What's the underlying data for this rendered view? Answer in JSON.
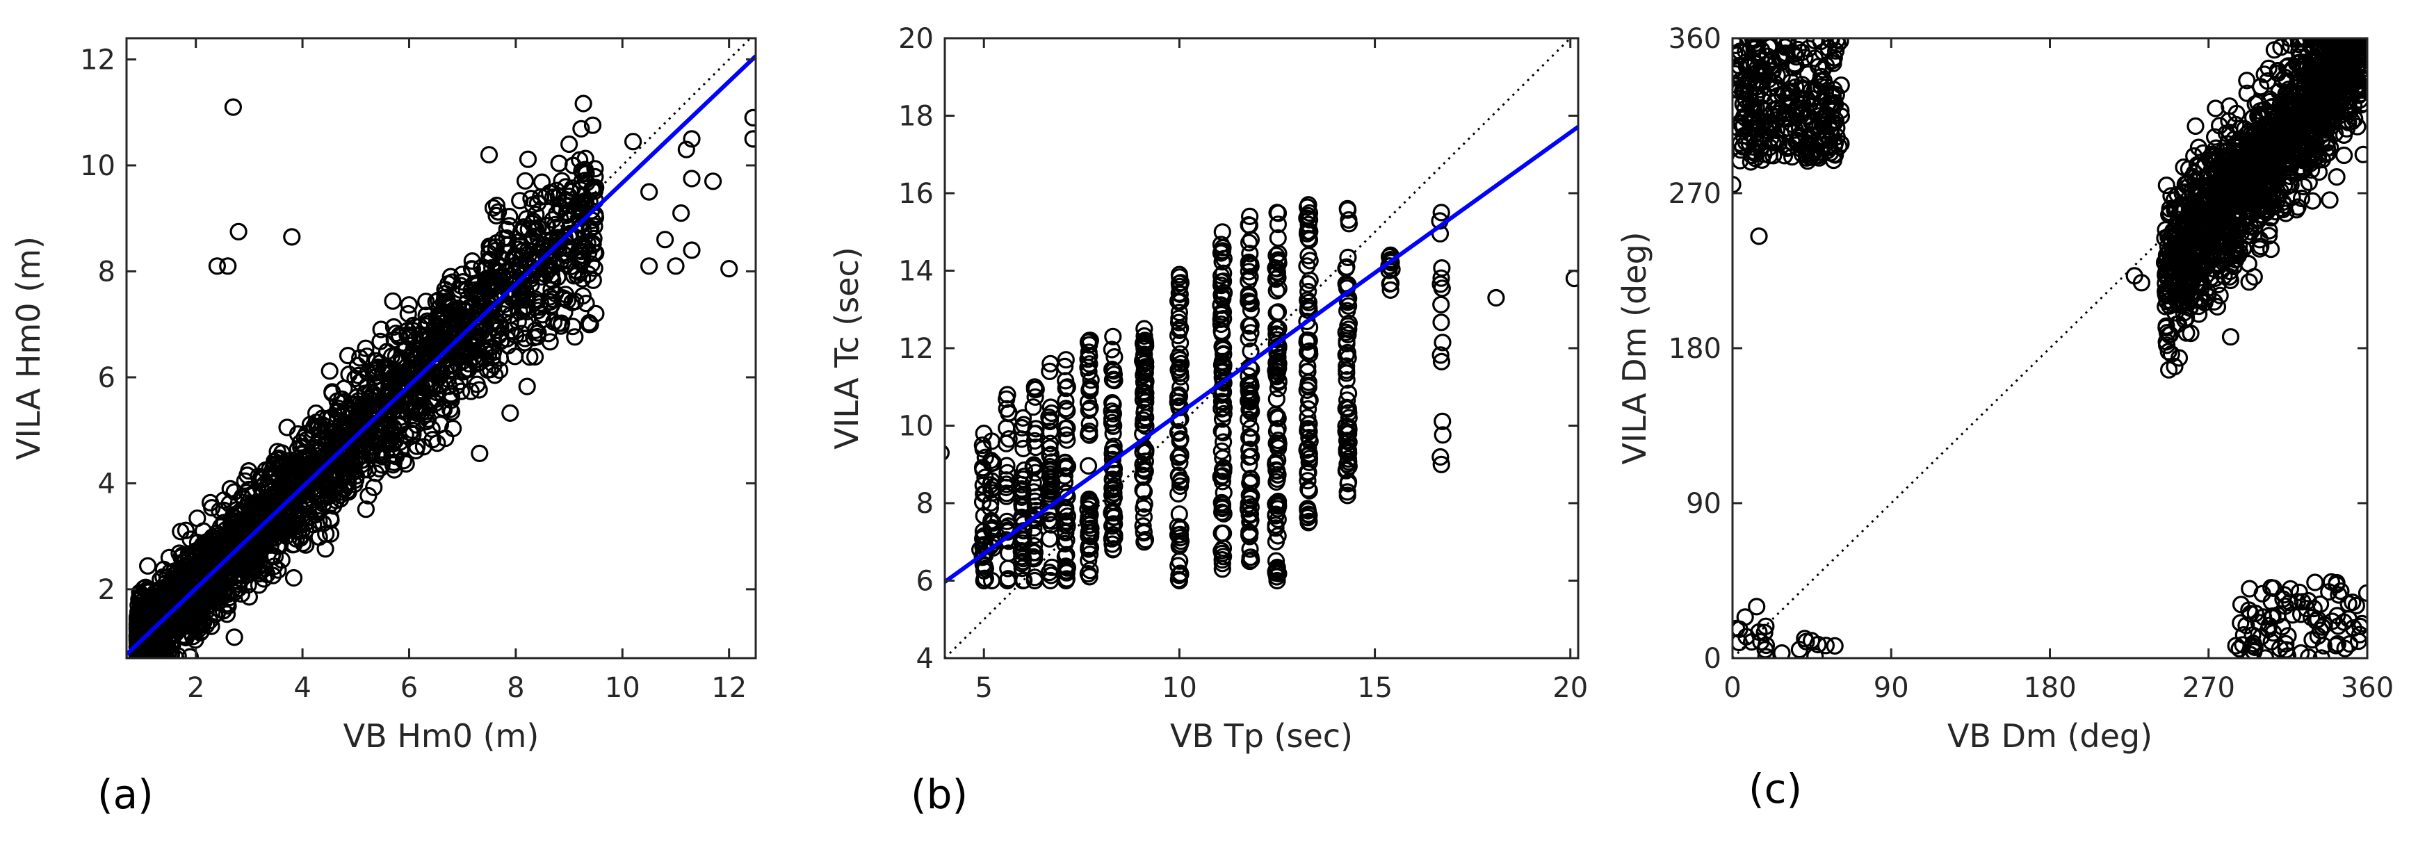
{
  "chart_data": [
    {
      "type": "scatter",
      "panel_label": "(a)",
      "xlabel": "VB Hm0 (m)",
      "ylabel": "VILA Hm0 (m)",
      "xlim": [
        0.7,
        12.5
      ],
      "ylim": [
        0.7,
        12.4
      ],
      "xticks": [
        2,
        4,
        6,
        8,
        10,
        12
      ],
      "yticks": [
        2,
        4,
        6,
        8,
        10,
        12
      ],
      "marker": "open-circle",
      "identity_line": true,
      "fit_line": {
        "color": "#0000ff",
        "slope": 0.957,
        "intercept": 0.1
      },
      "outliers": [
        [
          2.7,
          11.1
        ],
        [
          2.8,
          8.75
        ],
        [
          3.8,
          8.65
        ],
        [
          2.4,
          8.1
        ],
        [
          2.6,
          8.1
        ],
        [
          7.5,
          10.2
        ],
        [
          9.0,
          10.4
        ],
        [
          10.2,
          10.45
        ],
        [
          11.3,
          10.5
        ],
        [
          11.2,
          10.3
        ],
        [
          12.45,
          10.9
        ],
        [
          12.45,
          10.5
        ],
        [
          11.7,
          9.7
        ],
        [
          11.3,
          9.75
        ],
        [
          12.0,
          8.05
        ],
        [
          11.0,
          8.1
        ],
        [
          11.3,
          8.4
        ],
        [
          10.8,
          8.6
        ],
        [
          11.1,
          9.1
        ],
        [
          10.5,
          9.5
        ],
        [
          9.5,
          7.2
        ],
        [
          9.4,
          7.0
        ],
        [
          8.7,
          9.4
        ],
        [
          10.5,
          8.1
        ]
      ],
      "cloud": {
        "x_range": [
          0.9,
          9.5
        ],
        "mean_slope": 0.96,
        "mean_intercept": 0.1,
        "spread_y": 0.55,
        "count": 2600
      }
    },
    {
      "type": "scatter",
      "panel_label": "(b)",
      "xlabel": "VB Tp (sec)",
      "ylabel": "VILA Tc (sec)",
      "xlim": [
        4,
        20.2
      ],
      "ylim": [
        4,
        20
      ],
      "xticks": [
        5,
        10,
        15,
        20
      ],
      "yticks": [
        4,
        6,
        8,
        10,
        12,
        14,
        16,
        18,
        20
      ],
      "marker": "open-circle",
      "identity_line": true,
      "fit_line": {
        "color": "#0000ff",
        "slope": 0.725,
        "intercept": 3.07
      },
      "columns": [
        {
          "x": 5.0,
          "ymin": 6.0,
          "ymax": 9.8,
          "n": 28
        },
        {
          "x": 5.2,
          "ymin": 6.0,
          "ymax": 9.6,
          "n": 20
        },
        {
          "x": 5.6,
          "ymin": 6.0,
          "ymax": 10.8,
          "n": 24
        },
        {
          "x": 6.0,
          "ymin": 6.0,
          "ymax": 10.2,
          "n": 32
        },
        {
          "x": 6.3,
          "ymin": 6.0,
          "ymax": 11.0,
          "n": 34
        },
        {
          "x": 6.7,
          "ymin": 6.0,
          "ymax": 11.6,
          "n": 40
        },
        {
          "x": 7.1,
          "ymin": 6.0,
          "ymax": 11.7,
          "n": 44
        },
        {
          "x": 7.7,
          "ymin": 6.1,
          "ymax": 12.2,
          "n": 50
        },
        {
          "x": 8.3,
          "ymin": 6.8,
          "ymax": 12.3,
          "n": 52
        },
        {
          "x": 9.1,
          "ymin": 7.0,
          "ymax": 12.5,
          "n": 60
        },
        {
          "x": 10.0,
          "ymin": 6.0,
          "ymax": 13.9,
          "n": 70
        },
        {
          "x": 11.1,
          "ymin": 6.3,
          "ymax": 15.0,
          "n": 80
        },
        {
          "x": 11.8,
          "ymin": 6.5,
          "ymax": 15.4,
          "n": 80
        },
        {
          "x": 12.5,
          "ymin": 6.0,
          "ymax": 15.5,
          "n": 90
        },
        {
          "x": 13.3,
          "ymin": 7.5,
          "ymax": 15.7,
          "n": 70
        },
        {
          "x": 14.3,
          "ymin": 8.2,
          "ymax": 15.6,
          "n": 60
        },
        {
          "x": 15.4,
          "ymin": 13.5,
          "ymax": 14.4,
          "n": 10
        },
        {
          "x": 16.7,
          "ymin": 9.0,
          "ymax": 15.5,
          "n": 14
        }
      ],
      "outliers": [
        [
          3.9,
          9.3
        ],
        [
          18.1,
          13.3
        ],
        [
          20.1,
          13.8
        ],
        [
          4.9,
          6.8
        ],
        [
          5.2,
          7.3
        ]
      ]
    },
    {
      "type": "scatter",
      "panel_label": "(c)",
      "xlabel": "VB Dm (deg)",
      "ylabel": "VILA Dm (deg)",
      "xlim": [
        0,
        360
      ],
      "ylim": [
        0,
        360
      ],
      "xticks": [
        0,
        90,
        180,
        270,
        360
      ],
      "yticks": [
        0,
        90,
        180,
        270,
        360
      ],
      "marker": "open-circle",
      "identity_line": true,
      "clusters": [
        {
          "x_range": [
            245,
            360
          ],
          "y_range": [
            220,
            360
          ],
          "count": 1500,
          "along_diagonal": true
        },
        {
          "x_range": [
            0,
            62
          ],
          "y_range": [
            288,
            360
          ],
          "count": 320,
          "along_diagonal": false
        },
        {
          "x_range": [
            285,
            360
          ],
          "y_range": [
            0,
            45
          ],
          "count": 90,
          "along_diagonal": false
        },
        {
          "x_range": [
            2,
            20
          ],
          "y_range": [
            0,
            30
          ],
          "count": 14,
          "along_diagonal": false
        },
        {
          "x_range": [
            40,
            62
          ],
          "y_range": [
            0,
            12
          ],
          "count": 7,
          "along_diagonal": false
        }
      ],
      "outliers": [
        [
          15,
          245
        ],
        [
          0,
          275
        ],
        [
          228,
          222
        ],
        [
          232,
          218
        ],
        [
          28,
          3
        ],
        [
          38,
          5
        ]
      ]
    }
  ]
}
